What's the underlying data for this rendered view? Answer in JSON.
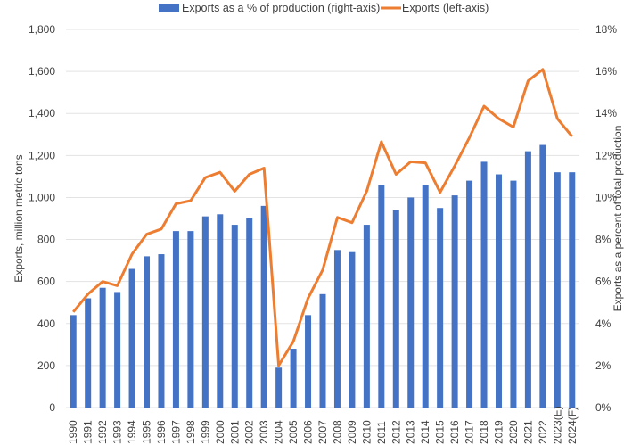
{
  "chart_data": {
    "type": "bar+line",
    "title": "",
    "categories": [
      "1990",
      "1991",
      "1992",
      "1993",
      "1994",
      "1995",
      "1996",
      "1997",
      "1998",
      "1999",
      "2000",
      "2001",
      "2002",
      "2003",
      "2004",
      "2005",
      "2006",
      "2007",
      "2008",
      "2009",
      "2010",
      "2011",
      "2012",
      "2013",
      "2014",
      "2015",
      "2016",
      "2017",
      "2018",
      "2019",
      "2020",
      "2021",
      "2022",
      "2023(E)",
      "2024(F)"
    ],
    "series": [
      {
        "name": "Exports as a % of production (right-axis)",
        "type": "bar",
        "axis": "right",
        "color": "#4472C4",
        "values": [
          4.4,
          5.2,
          5.7,
          5.5,
          6.6,
          7.2,
          7.3,
          8.4,
          8.4,
          9.1,
          9.2,
          8.7,
          9.0,
          9.6,
          1.9,
          2.8,
          4.4,
          5.4,
          7.5,
          7.4,
          8.7,
          10.6,
          9.4,
          10.0,
          10.6,
          9.5,
          10.1,
          10.8,
          11.7,
          11.1,
          10.8,
          12.2,
          12.5,
          11.2,
          11.2
        ]
      },
      {
        "name": "Exports (left-axis)",
        "type": "line",
        "axis": "left",
        "color": "#ED7D31",
        "values": [
          455,
          540,
          600,
          580,
          730,
          825,
          850,
          970,
          985,
          1095,
          1120,
          1030,
          1110,
          1140,
          200,
          315,
          520,
          655,
          905,
          880,
          1030,
          1265,
          1110,
          1170,
          1165,
          1025,
          1150,
          1285,
          1435,
          1375,
          1335,
          1555,
          1610,
          1375,
          1290
        ]
      }
    ],
    "left_axis": {
      "label": "Exports, million metric tons",
      "range": [
        0,
        1800
      ],
      "ticks": [
        "0",
        "200",
        "400",
        "600",
        "800",
        "1,000",
        "1,200",
        "1,400",
        "1,600",
        "1,800"
      ],
      "tick_values": [
        0,
        200,
        400,
        600,
        800,
        1000,
        1200,
        1400,
        1600,
        1800
      ]
    },
    "right_axis": {
      "label": "Exports as a percent of total production",
      "range": [
        0,
        18
      ],
      "ticks": [
        "0%",
        "2%",
        "4%",
        "6%",
        "8%",
        "10%",
        "12%",
        "14%",
        "16%",
        "18%"
      ],
      "tick_values": [
        0,
        2,
        4,
        6,
        8,
        10,
        12,
        14,
        16,
        18
      ]
    },
    "grid": true,
    "legend_position": "top-center",
    "legend": [
      "Exports as a % of production (right-axis)",
      "Exports (left-axis)"
    ]
  }
}
